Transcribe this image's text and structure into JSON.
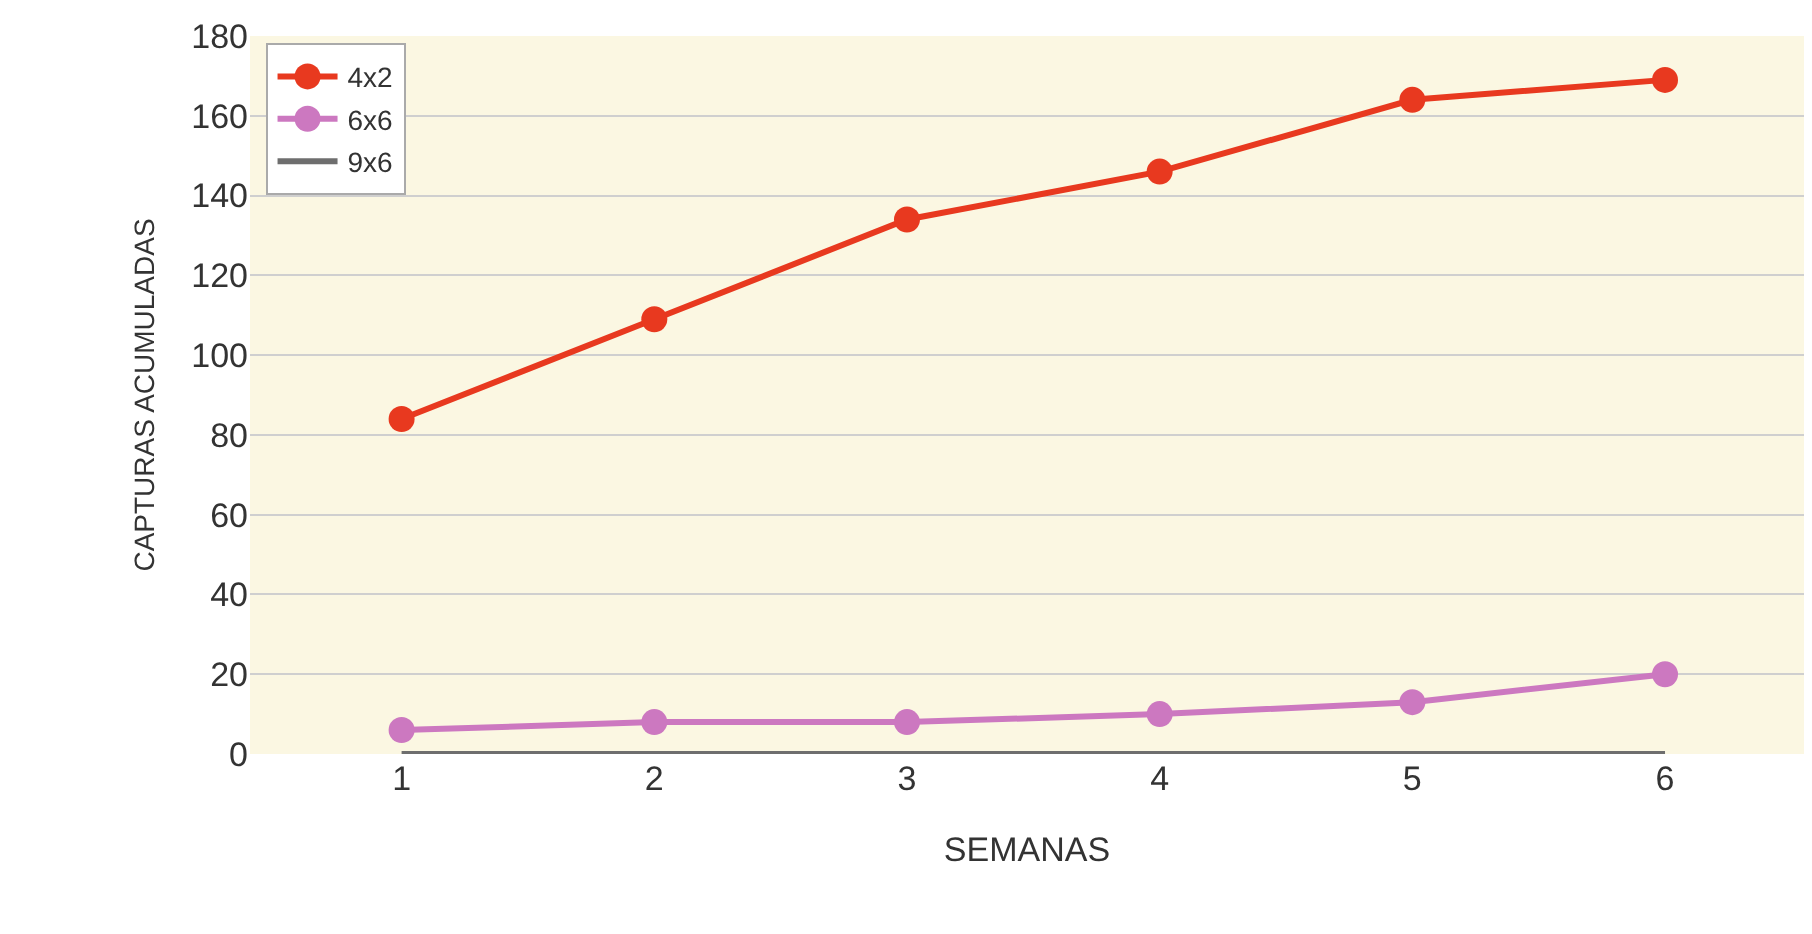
{
  "chart_data": {
    "type": "line",
    "xlabel": "SEMANAS",
    "ylabel": "CAPTURAS ACUMULADAS",
    "categories": [
      "1",
      "2",
      "3",
      "4",
      "5",
      "6"
    ],
    "series": [
      {
        "name": "4x2",
        "color": "#e8391f",
        "marker": "circle",
        "values": [
          84,
          109,
          134,
          146,
          164,
          169
        ]
      },
      {
        "name": "6x6",
        "color": "#cc78c0",
        "marker": "circle",
        "values": [
          6,
          8,
          8,
          10,
          13,
          20
        ]
      },
      {
        "name": "9x6",
        "color": "#6e6e6e",
        "marker": "none",
        "values": [
          0,
          0,
          0,
          0,
          0,
          0
        ]
      }
    ],
    "ylim": [
      0,
      180
    ],
    "yticks": [
      0,
      20,
      40,
      60,
      80,
      100,
      120,
      140,
      160,
      180
    ],
    "grid": "y",
    "legend": "top left",
    "line_style": "solid"
  }
}
